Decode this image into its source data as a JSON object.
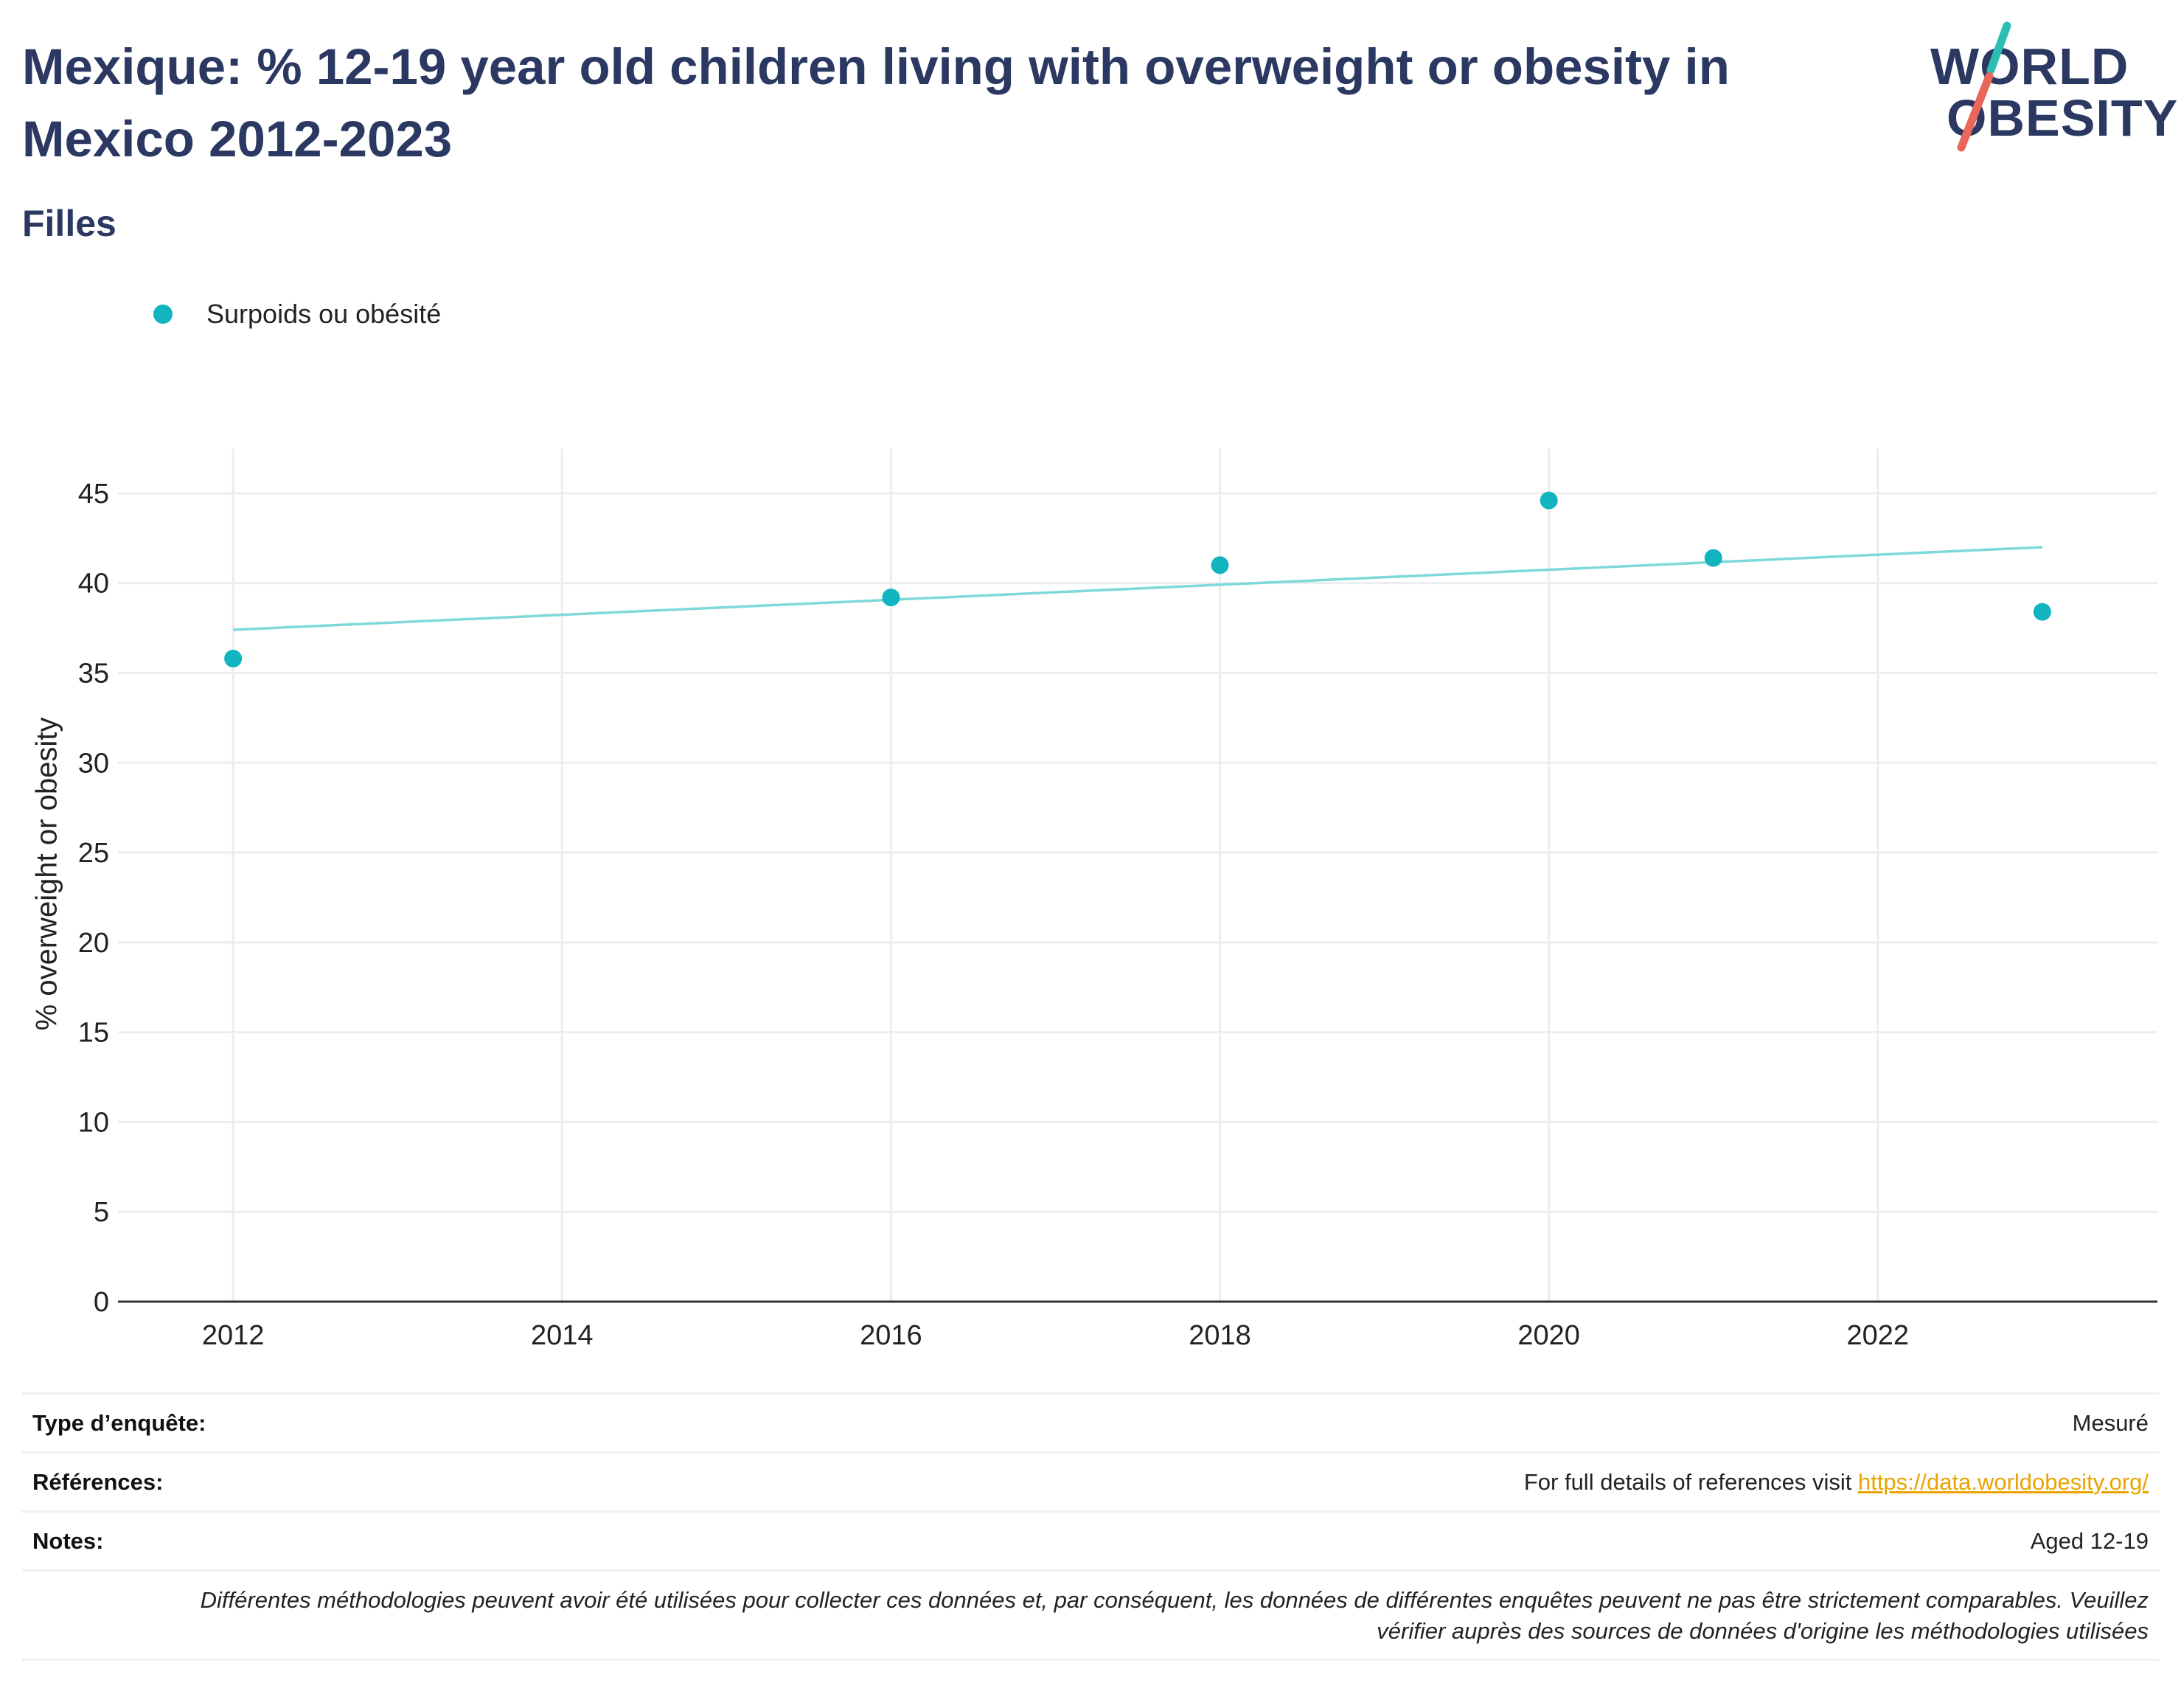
{
  "header": {
    "title": "Mexique: % 12-19 year old children living with overweight or obesity in Mexico 2012-2023",
    "subtitle": "Filles"
  },
  "logo": {
    "line1": "WORLD",
    "line2": "OBESITY",
    "accent_teal": "#2bbfb3",
    "accent_red": "#e8675a"
  },
  "legend": {
    "label": "Surpoids ou obésité",
    "marker_color": "#12b4bf"
  },
  "chart_data": {
    "type": "scatter",
    "ylabel": "% overweight or obesity",
    "xlabel": "",
    "xlim": [
      2011.3,
      2023.7
    ],
    "ylim": [
      0,
      47.5
    ],
    "x_ticks": [
      2012,
      2014,
      2016,
      2018,
      2020,
      2022
    ],
    "y_ticks": [
      0,
      5,
      10,
      15,
      20,
      25,
      30,
      35,
      40,
      45
    ],
    "grid": true,
    "legend_position": "top-left",
    "series": [
      {
        "name": "Surpoids ou obésité",
        "color": "#12b4bf",
        "points": [
          {
            "x": 2012,
            "y": 35.8
          },
          {
            "x": 2016,
            "y": 39.2
          },
          {
            "x": 2018,
            "y": 41.0
          },
          {
            "x": 2020,
            "y": 44.6
          },
          {
            "x": 2021,
            "y": 41.4
          },
          {
            "x": 2023,
            "y": 38.4
          }
        ]
      }
    ],
    "trendline": {
      "color": "#7fd8d8",
      "points": [
        {
          "x": 2012,
          "y": 37.4
        },
        {
          "x": 2023,
          "y": 42.0
        }
      ]
    }
  },
  "footer": {
    "rows": [
      {
        "key": "Type d’enquête:",
        "value": "Mesuré"
      },
      {
        "key": "Références:",
        "value": "For full details of references visit ",
        "link": "https://data.worldobesity.org/"
      },
      {
        "key": "Notes:",
        "value": "Aged 12-19"
      }
    ],
    "disclaimer": "Différentes méthodologies peuvent avoir été utilisées pour collecter ces données et, par conséquent, les données de différentes enquêtes peuvent ne pas être strictement comparables. Veuillez vérifier auprès des sources de données d'origine les méthodologies utilisées"
  }
}
